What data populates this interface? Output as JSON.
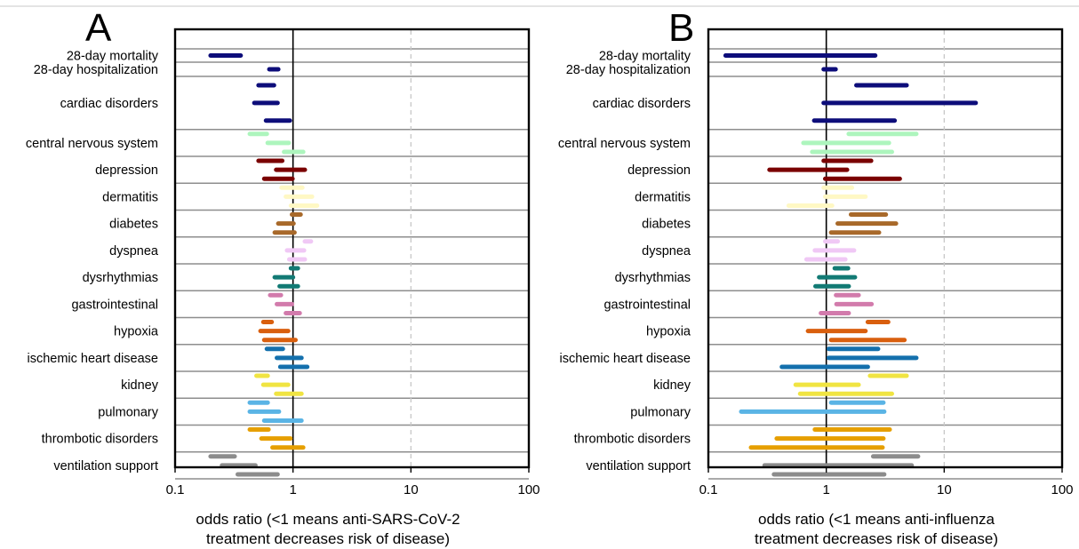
{
  "figure": {
    "top_rule_color": "#dcdcdc"
  },
  "chart_data": [
    {
      "type": "interval",
      "panel_label": "A",
      "xlabel": "odds ratio (<1 means anti-SARS-CoV-2\ntreatment decreases risk of disease)",
      "xscale": "log",
      "xlim": [
        0.1,
        100
      ],
      "xticks": [
        "0.1",
        "1",
        "10",
        "100"
      ],
      "reference_line": 1,
      "dashed_line": 10,
      "grid": "horizontal group separators",
      "groups": [
        {
          "label": "28-day mortality",
          "color": "#0d0d7a",
          "intervals": [
            [
              0.2,
              0.36
            ]
          ]
        },
        {
          "label": "28-day hospitalization",
          "color": "#0d0d7a",
          "intervals": [
            [
              0.63,
              0.75
            ]
          ]
        },
        {
          "label": "cardiac disorders",
          "color": "#0d0d7a",
          "intervals": [
            [
              0.51,
              0.69
            ],
            [
              0.47,
              0.74
            ],
            [
              0.59,
              0.94
            ]
          ]
        },
        {
          "label": "central nervous system",
          "color": "#adf5bd",
          "intervals": [
            [
              0.43,
              0.6
            ],
            [
              0.61,
              0.92
            ],
            [
              0.84,
              1.22
            ]
          ]
        },
        {
          "label": "depression",
          "color": "#7a0000",
          "intervals": [
            [
              0.51,
              0.81
            ],
            [
              0.72,
              1.26
            ],
            [
              0.57,
              0.99
            ]
          ]
        },
        {
          "label": "dermatitis",
          "color": "#fff8c4",
          "intervals": [
            [
              0.8,
              1.2
            ],
            [
              0.87,
              1.45
            ],
            [
              0.96,
              1.6
            ]
          ]
        },
        {
          "label": "diabetes",
          "color": "#a8692a",
          "intervals": [
            [
              0.98,
              1.16
            ],
            [
              0.75,
              1.01
            ],
            [
              0.7,
              1.03
            ]
          ]
        },
        {
          "label": "dyspnea",
          "color": "#f0c8f5",
          "intervals": [
            [
              1.26,
              1.42
            ],
            [
              0.89,
              1.24
            ],
            [
              0.93,
              1.26
            ]
          ]
        },
        {
          "label": "dysrhythmias",
          "color": "#127a74",
          "intervals": [
            [
              0.96,
              1.1
            ],
            [
              0.7,
              1.0
            ],
            [
              0.77,
              1.1
            ]
          ]
        },
        {
          "label": "gastrointestinal",
          "color": "#d27bac",
          "intervals": [
            [
              0.64,
              0.79
            ],
            [
              0.73,
              0.98
            ],
            [
              0.87,
              1.14
            ]
          ]
        },
        {
          "label": "hypoxia",
          "color": "#d95f0e",
          "intervals": [
            [
              0.56,
              0.66
            ],
            [
              0.53,
              0.91
            ],
            [
              0.57,
              1.05
            ]
          ]
        },
        {
          "label": "ischemic heart disease",
          "color": "#1470ad",
          "intervals": [
            [
              0.6,
              0.82
            ],
            [
              0.73,
              1.18
            ],
            [
              0.78,
              1.32
            ]
          ]
        },
        {
          "label": "kidney",
          "color": "#f0e442",
          "intervals": [
            [
              0.49,
              0.61
            ],
            [
              0.56,
              0.91
            ],
            [
              0.72,
              1.18
            ]
          ]
        },
        {
          "label": "pulmonary",
          "color": "#5ab4e5",
          "intervals": [
            [
              0.43,
              0.61
            ],
            [
              0.43,
              0.76
            ],
            [
              0.57,
              1.18
            ]
          ]
        },
        {
          "label": "thrombotic disorders",
          "color": "#e69f00",
          "intervals": [
            [
              0.43,
              0.62
            ],
            [
              0.54,
              0.95
            ],
            [
              0.67,
              1.22
            ]
          ]
        },
        {
          "label": "ventilation support",
          "color": "#8c8c8c",
          "intervals": [
            [
              0.2,
              0.32
            ],
            [
              0.25,
              0.48
            ],
            [
              0.34,
              0.74
            ]
          ]
        }
      ]
    },
    {
      "type": "interval",
      "panel_label": "B",
      "xlabel": "odds ratio (<1 means anti-influenza\ntreatment decreases risk of disease)",
      "xscale": "log",
      "xlim": [
        0.1,
        100
      ],
      "xticks": [
        "0.1",
        "1",
        "10",
        "100"
      ],
      "reference_line": 1,
      "dashed_line": 10,
      "grid": "horizontal group separators",
      "groups": [
        {
          "label": "28-day mortality",
          "color": "#0d0d7a",
          "intervals": [
            [
              0.14,
              2.6
            ]
          ]
        },
        {
          "label": "28-day hospitalization",
          "color": "#0d0d7a",
          "intervals": [
            [
              0.95,
              1.2
            ]
          ]
        },
        {
          "label": "cardiac disorders",
          "color": "#0d0d7a",
          "intervals": [
            [
              1.8,
              4.8
            ],
            [
              0.95,
              18.5
            ],
            [
              0.79,
              3.8
            ]
          ]
        },
        {
          "label": "central nervous system",
          "color": "#adf5bd",
          "intervals": [
            [
              1.55,
              5.8
            ],
            [
              0.64,
              3.4
            ],
            [
              0.76,
              3.6
            ]
          ]
        },
        {
          "label": "depression",
          "color": "#7a0000",
          "intervals": [
            [
              0.95,
              2.4
            ],
            [
              0.33,
              1.5
            ],
            [
              0.98,
              4.2
            ]
          ]
        },
        {
          "label": "dermatitis",
          "color": "#fff8c4",
          "intervals": [
            [
              0.95,
              1.65
            ],
            [
              0.98,
              2.15
            ],
            [
              0.48,
              1.12
            ]
          ]
        },
        {
          "label": "diabetes",
          "color": "#a8692a",
          "intervals": [
            [
              1.62,
              3.2
            ],
            [
              1.25,
              3.9
            ],
            [
              1.1,
              2.8
            ]
          ]
        },
        {
          "label": "dyspnea",
          "color": "#f0c8f5",
          "intervals": [
            [
              0.98,
              1.25
            ],
            [
              0.8,
              1.72
            ],
            [
              0.68,
              1.45
            ]
          ]
        },
        {
          "label": "dysrhythmias",
          "color": "#127a74",
          "intervals": [
            [
              1.18,
              1.53
            ],
            [
              0.87,
              1.75
            ],
            [
              0.81,
              1.55
            ]
          ]
        },
        {
          "label": "gastrointestinal",
          "color": "#d27bac",
          "intervals": [
            [
              1.21,
              1.88
            ],
            [
              1.22,
              2.42
            ],
            [
              0.9,
              1.55
            ]
          ]
        },
        {
          "label": "hypoxia",
          "color": "#d95f0e",
          "intervals": [
            [
              2.25,
              3.35
            ],
            [
              0.7,
              2.15
            ],
            [
              1.1,
              4.6
            ]
          ]
        },
        {
          "label": "ischemic heart disease",
          "color": "#1470ad",
          "intervals": [
            [
              1.05,
              2.75
            ],
            [
              1.05,
              5.8
            ],
            [
              0.42,
              2.25
            ]
          ]
        },
        {
          "label": "kidney",
          "color": "#f0e442",
          "intervals": [
            [
              2.35,
              4.8
            ],
            [
              0.55,
              1.88
            ],
            [
              0.6,
              3.6
            ]
          ]
        },
        {
          "label": "pulmonary",
          "color": "#5ab4e5",
          "intervals": [
            [
              1.1,
              3.05
            ],
            [
              0.19,
              3.1
            ]
          ]
        },
        {
          "label": "thrombotic disorders",
          "color": "#e69f00",
          "intervals": [
            [
              0.8,
              3.45
            ],
            [
              0.38,
              3.05
            ],
            [
              0.23,
              3.0
            ]
          ]
        },
        {
          "label": "ventilation support",
          "color": "#8c8c8c",
          "intervals": [
            [
              2.5,
              6.0
            ],
            [
              0.3,
              5.3
            ],
            [
              0.36,
              3.1
            ]
          ]
        }
      ]
    }
  ]
}
